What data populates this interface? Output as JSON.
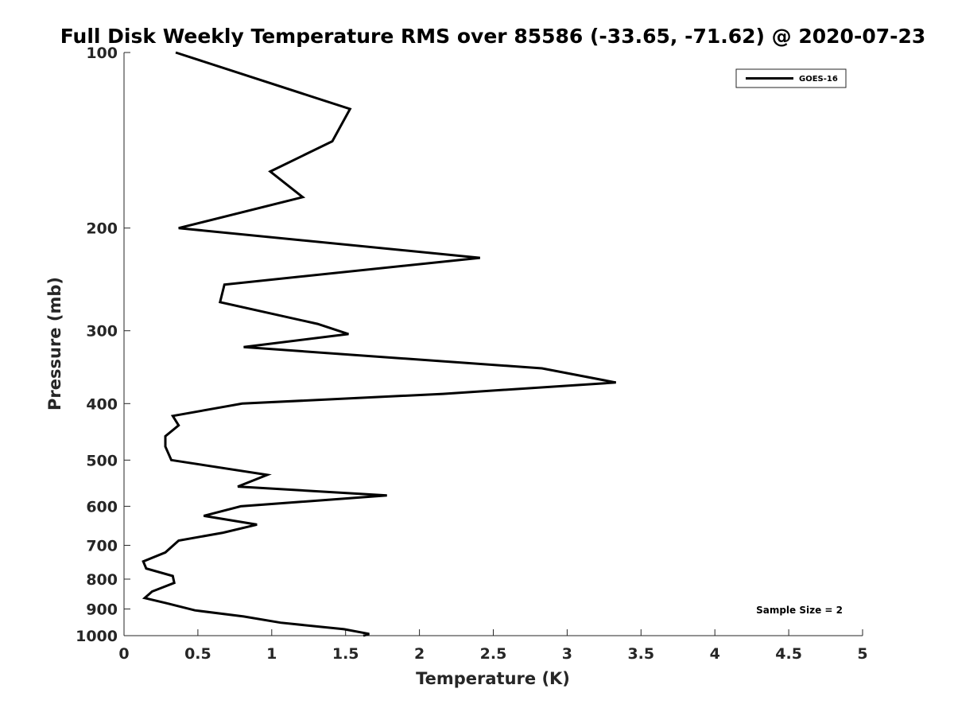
{
  "chart_data": {
    "type": "line",
    "title": "Full Disk Weekly Temperature RMS over 85586 (-33.65, -71.62) @ 2020-07-23",
    "xlabel": "Temperature (K)",
    "ylabel": "Pressure (mb)",
    "xlim": [
      0,
      5
    ],
    "ylim": [
      1000,
      100
    ],
    "yscale": "log",
    "y_reversed": true,
    "grid": false,
    "legend_position": "top-right",
    "x_ticks": [
      "0",
      "0.5",
      "1",
      "1.5",
      "2",
      "2.5",
      "3",
      "3.5",
      "4",
      "4.5",
      "5"
    ],
    "y_ticks": [
      "100",
      "200",
      "300",
      "400",
      "500",
      "600",
      "700",
      "800",
      "900",
      "1000"
    ],
    "annotation": "Sample Size = 2",
    "series": [
      {
        "name": "GOES-16",
        "color": "#000000",
        "x": [
          0.35,
          1.53,
          1.41,
          0.99,
          1.21,
          0.37,
          2.41,
          0.68,
          0.65,
          1.31,
          1.52,
          0.81,
          2.83,
          3.33,
          2.16,
          0.8,
          0.33,
          0.37,
          0.28,
          0.28,
          0.32,
          0.97,
          0.77,
          1.78,
          0.79,
          0.54,
          0.9,
          0.67,
          0.37,
          0.28,
          0.13,
          0.15,
          0.33,
          0.34,
          0.19,
          0.14,
          0.29,
          0.48,
          0.81,
          1.06,
          1.49,
          1.66,
          1.62
        ],
        "y": [
          100,
          125,
          142,
          160,
          177,
          200,
          225,
          250,
          268,
          292,
          304,
          320,
          348,
          368,
          385,
          400,
          420,
          436,
          455,
          474,
          500,
          530,
          555,
          575,
          600,
          623,
          645,
          666,
          687,
          720,
          746,
          767,
          790,
          812,
          840,
          862,
          880,
          905,
          927,
          950,
          975,
          993,
          1000
        ]
      }
    ]
  }
}
